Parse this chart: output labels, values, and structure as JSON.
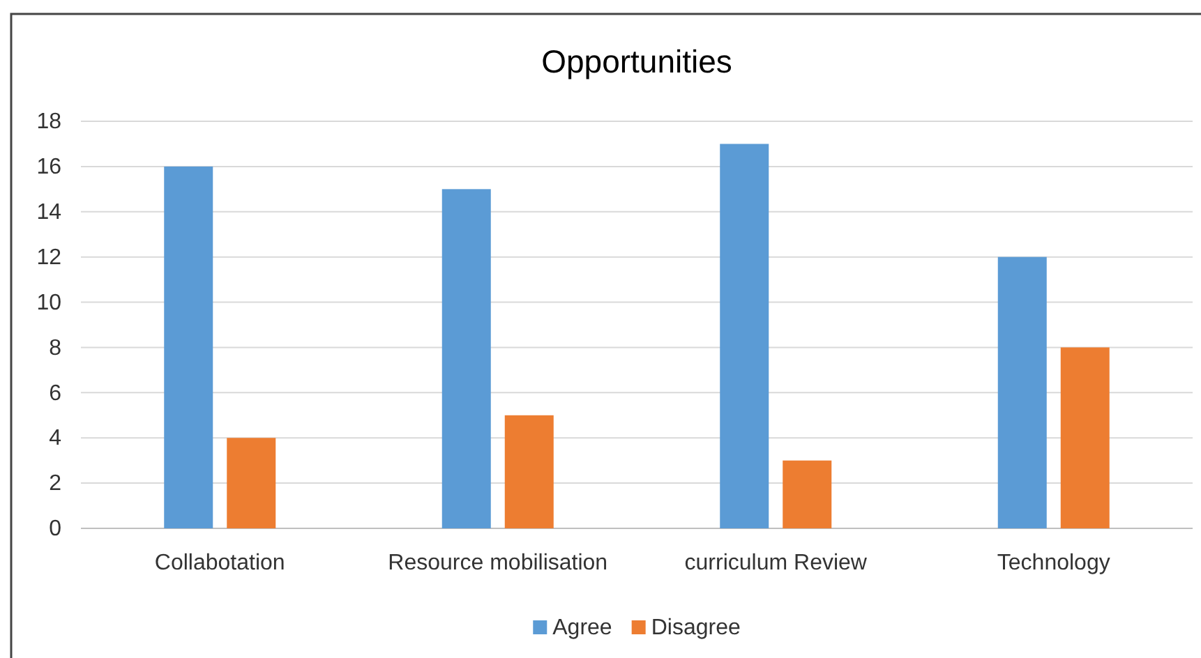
{
  "chart_data": {
    "type": "bar",
    "title": "Opportunities",
    "categories": [
      "Collabotation",
      "Resource mobilisation",
      "curriculum Review",
      "Technology"
    ],
    "series": [
      {
        "name": "Agree",
        "color": "#5b9bd5",
        "values": [
          16,
          15,
          17,
          12
        ]
      },
      {
        "name": "Disagree",
        "color": "#ed7d31",
        "values": [
          4,
          5,
          3,
          8
        ]
      }
    ],
    "ylim": [
      0,
      18
    ],
    "yticks": [
      0,
      2,
      4,
      6,
      8,
      10,
      12,
      14,
      16,
      18
    ],
    "grid": "y",
    "legend": "bottom"
  }
}
